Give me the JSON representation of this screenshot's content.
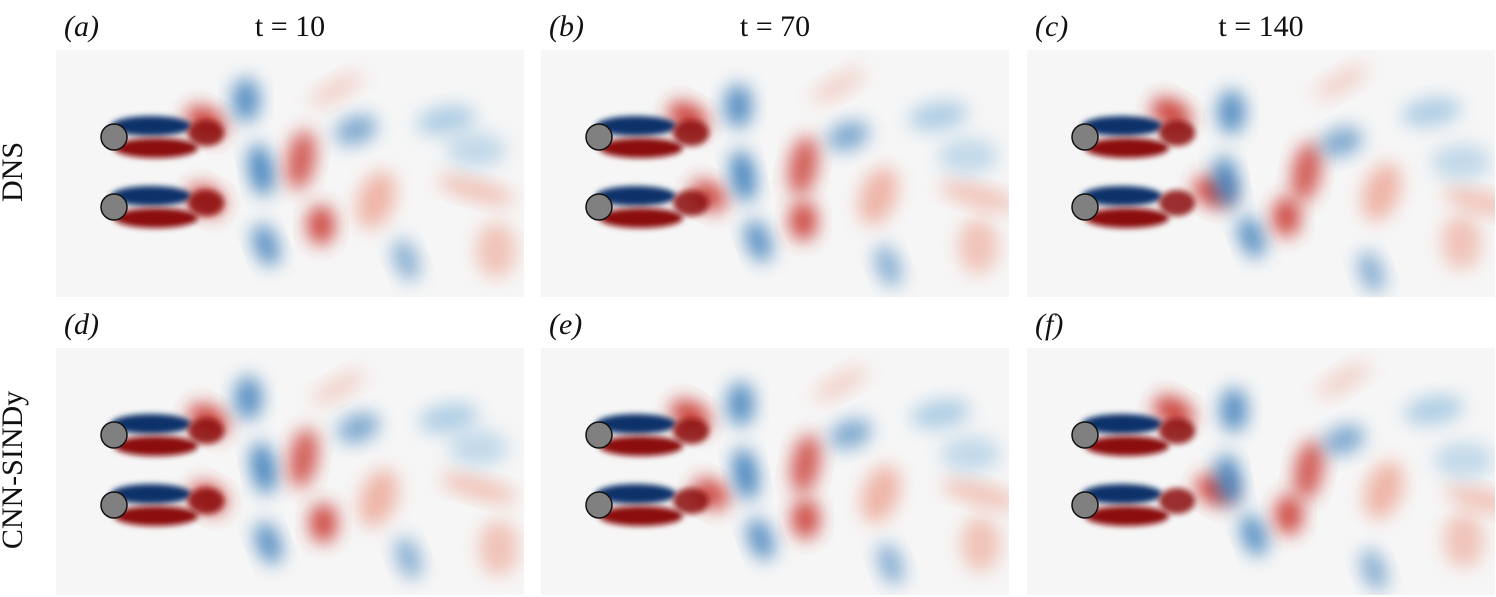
{
  "columns": [
    {
      "label": "(a)",
      "title": "t = 10"
    },
    {
      "label": "(b)",
      "title": "t = 70"
    },
    {
      "label": "(c)",
      "title": "t = 140"
    }
  ],
  "rows": [
    {
      "name": "DNS",
      "labels": [
        "(a)",
        "(b)",
        "(c)"
      ]
    },
    {
      "name": "CNN-SINDy",
      "labels": [
        "(d)",
        "(e)",
        "(f)"
      ]
    }
  ]
}
